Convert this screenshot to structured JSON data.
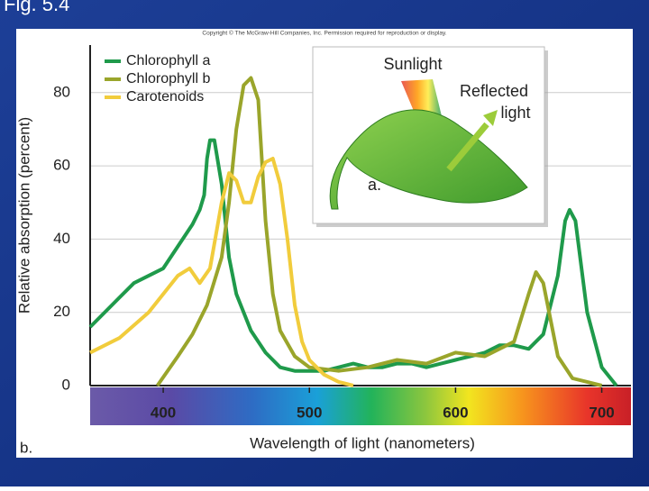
{
  "slide": {
    "title": "Fig. 5.4"
  },
  "chart_data": {
    "type": "line",
    "copyright": "Copyright © The McGraw-Hill Companies, Inc. Permission required for reproduction or display.",
    "x_label": "Wavelength of light (nanometers)",
    "y_label": "Relative absorption (percent)",
    "panel_label": "b.",
    "xlim": [
      350,
      720
    ],
    "ylim": [
      0,
      92
    ],
    "xticks": [
      400,
      500,
      600,
      700
    ],
    "yticks": [
      0,
      20,
      40,
      60,
      80
    ],
    "grid": true,
    "legend": "top-left",
    "series": [
      {
        "name": "Chlorophyll a",
        "color": "#1f9a4b",
        "x": [
          350,
          370,
          380,
          400,
          410,
          420,
          425,
          428,
          430,
          432,
          435,
          440,
          445,
          450,
          460,
          470,
          480,
          490,
          500,
          510,
          520,
          530,
          540,
          550,
          560,
          570,
          580,
          590,
          600,
          610,
          620,
          630,
          640,
          650,
          660,
          670,
          675,
          678,
          682,
          690,
          700,
          710
        ],
        "values": [
          16,
          24,
          28,
          32,
          38,
          44,
          48,
          52,
          62,
          67,
          67,
          55,
          35,
          25,
          15,
          9,
          5,
          4,
          4,
          4,
          5,
          6,
          5,
          5,
          6,
          6,
          5,
          6,
          7,
          8,
          9,
          11,
          11,
          10,
          14,
          30,
          45,
          48,
          45,
          20,
          5,
          0
        ]
      },
      {
        "name": "Chlorophyll b",
        "color": "#9aa52b",
        "x": [
          396,
          410,
          420,
          430,
          440,
          445,
          450,
          455,
          460,
          465,
          470,
          475,
          480,
          490,
          500,
          520,
          540,
          560,
          580,
          600,
          620,
          640,
          650,
          655,
          660,
          670,
          680,
          690,
          700
        ],
        "values": [
          0,
          8,
          14,
          22,
          35,
          50,
          70,
          82,
          84,
          78,
          45,
          25,
          15,
          8,
          5,
          4,
          5,
          7,
          6,
          9,
          8,
          12,
          25,
          31,
          28,
          8,
          2,
          1,
          0
        ]
      },
      {
        "name": "Carotenoids",
        "color": "#f1cc3c",
        "x": [
          350,
          370,
          390,
          410,
          418,
          425,
          432,
          440,
          445,
          450,
          455,
          460,
          465,
          470,
          475,
          480,
          485,
          490,
          495,
          500,
          510,
          520,
          530
        ],
        "values": [
          9,
          13,
          20,
          30,
          32,
          28,
          32,
          50,
          58,
          56,
          50,
          50,
          57,
          61,
          62,
          55,
          40,
          22,
          12,
          7,
          3,
          1,
          0
        ]
      }
    ],
    "inset": {
      "sunlight": "Sunlight",
      "reflected_line1": "Reflected",
      "reflected_line2": "light",
      "label": "a."
    }
  }
}
